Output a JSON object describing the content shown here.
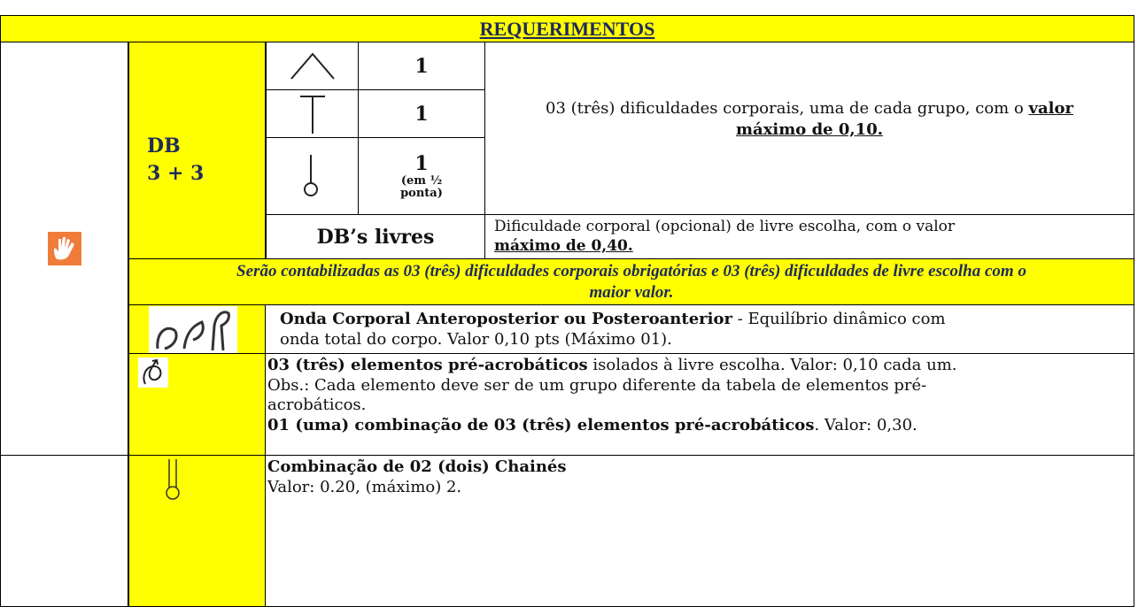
{
  "header": {
    "title": "REQUERIMENTOS"
  },
  "db": {
    "label": "DB",
    "count": "3 + 3",
    "symbols": [
      {
        "value": "1"
      },
      {
        "value": "1"
      },
      {
        "value": "1",
        "note": "(em ½ ponta)"
      }
    ],
    "description": {
      "text": "03 (três) dificuldades corporais, uma de cada grupo, com o",
      "emphasis": "valor máximo de 0,10."
    }
  },
  "db_livres": {
    "label": "DB’s livres",
    "description": {
      "text": "Dificuldade corporal (opcional) de livre escolha, com o valor",
      "emphasis": "máximo de 0,40."
    }
  },
  "note": "Serão contabilizadas as 03 (três) dificuldades corporais obrigatórias e 03 (três) dificuldades de livre escolha com o maior valor.",
  "onda": {
    "title": "Onda Corporal Anteroposterior ou Posteroanterior",
    "text": "- Equilíbrio dinâmico com onda total do corpo. Valor 0,10 pts (Máximo 01)."
  },
  "pre_acrobaticos": {
    "title": "03 (três) elementos pré-acrobáticos",
    "text": "isolados à livre escolha. Valor: 0,10 cada um.",
    "obs": "Obs.: Cada elemento deve ser de um grupo diferente da tabela de elementos pré-acrobáticos.",
    "combination_title": "01 (uma) combinação de 03 (três) elementos pré-acrobáticos",
    "combination_text": ". Valor: 0,30."
  },
  "chaines": {
    "title": "Combinação de 02 (dois) Chainés",
    "text": "Valor: 0.20, (máximo) 2."
  }
}
